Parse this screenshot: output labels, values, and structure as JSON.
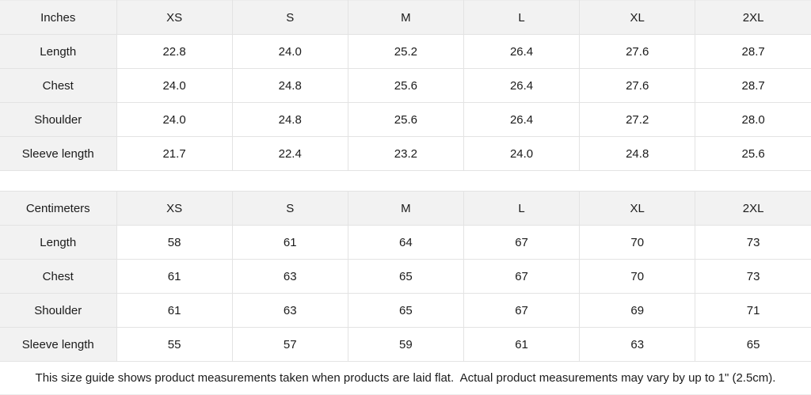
{
  "tables": [
    {
      "name": "inches",
      "header": [
        "Inches",
        "XS",
        "S",
        "M",
        "L",
        "XL",
        "2XL"
      ],
      "rows": [
        {
          "label": "Length",
          "values": [
            "22.8",
            "24.0",
            "25.2",
            "26.4",
            "27.6",
            "28.7"
          ]
        },
        {
          "label": "Chest",
          "values": [
            "24.0",
            "24.8",
            "25.6",
            "26.4",
            "27.6",
            "28.7"
          ]
        },
        {
          "label": "Shoulder",
          "values": [
            "24.0",
            "24.8",
            "25.6",
            "26.4",
            "27.2",
            "28.0"
          ]
        },
        {
          "label": "Sleeve length",
          "values": [
            "21.7",
            "22.4",
            "23.2",
            "24.0",
            "24.8",
            "25.6"
          ]
        }
      ]
    },
    {
      "name": "centimeters",
      "header": [
        "Centimeters",
        "XS",
        "S",
        "M",
        "L",
        "XL",
        "2XL"
      ],
      "rows": [
        {
          "label": "Length",
          "values": [
            "58",
            "61",
            "64",
            "67",
            "70",
            "73"
          ]
        },
        {
          "label": "Chest",
          "values": [
            "61",
            "63",
            "65",
            "67",
            "70",
            "73"
          ]
        },
        {
          "label": "Shoulder",
          "values": [
            "61",
            "63",
            "65",
            "67",
            "69",
            "71"
          ]
        },
        {
          "label": "Sleeve length",
          "values": [
            "55",
            "57",
            "59",
            "61",
            "63",
            "65"
          ]
        }
      ]
    }
  ],
  "footer": {
    "note": "This size guide shows product measurements taken when products are laid flat.  Actual product measurements may vary by up to 1\" (2.5cm)."
  },
  "colors": {
    "header_bg": "#f2f2f2",
    "cell_bg": "#ffffff",
    "border": "#e3e3e3",
    "text": "#1b1b1b"
  }
}
